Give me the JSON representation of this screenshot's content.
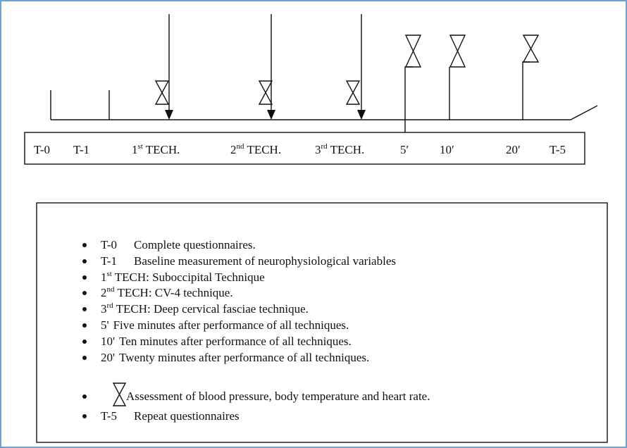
{
  "timeline": {
    "labels": [
      {
        "text": "T-0"
      },
      {
        "text": "T-1"
      },
      {
        "text": "1",
        "sup": "st",
        "rest": " TECH."
      },
      {
        "text": "2",
        "sup": "nd",
        "rest": " TECH."
      },
      {
        "text": "3",
        "sup": "rd",
        "rest": " TECH."
      },
      {
        "text": "5′"
      },
      {
        "text": "10′"
      },
      {
        "text": "20′"
      },
      {
        "text": "T-5"
      }
    ]
  },
  "legend": {
    "items": [
      {
        "key": "T-0",
        "text": "Complete questionnaires."
      },
      {
        "key": "T-1",
        "text": "Baseline measurement of neurophysiological variables"
      },
      {
        "key": "1",
        "sup": "st",
        "text": " TECH: Suboccipital Technique"
      },
      {
        "key": "2",
        "sup": "nd",
        "text": " TECH: CV-4 technique."
      },
      {
        "key": "3",
        "sup": "rd",
        "text": " TECH: Deep cervical fasciae technique."
      },
      {
        "key": "5'",
        "text": "Five minutes after performance of all techniques."
      },
      {
        "key": "10'",
        "text": "Ten minutes after performance of all techniques."
      },
      {
        "key": "20'",
        "text": "Twenty minutes after performance of all techniques."
      },
      {
        "text": "Assessment of blood pressure, body temperature and heart rate."
      },
      {
        "key": "T-5",
        "text": "Repeat questionnaires"
      }
    ]
  }
}
